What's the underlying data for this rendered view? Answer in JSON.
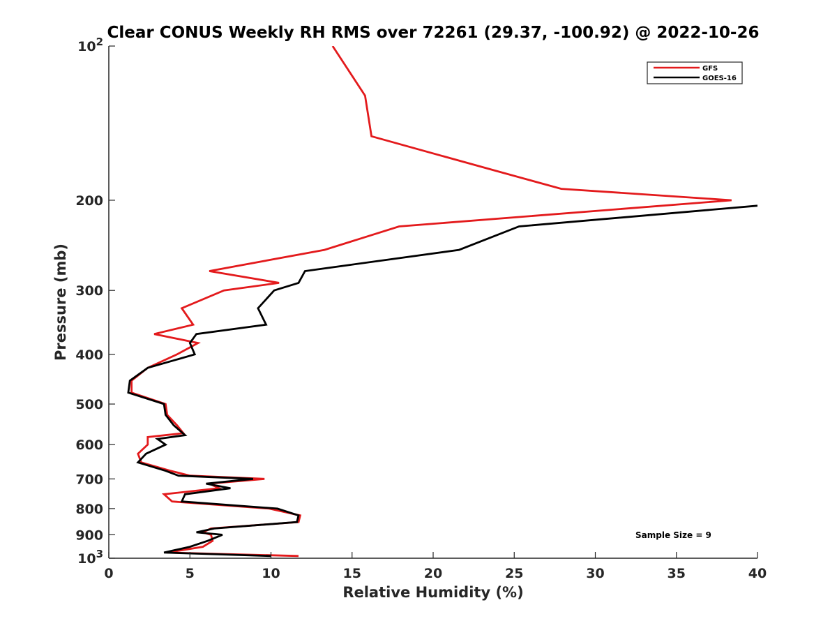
{
  "chart_data": {
    "type": "line",
    "title": "Clear CONUS Weekly RH RMS over 72261 (29.37, -100.92) @ 2022-10-26",
    "xlabel": "Relative Humidity (%)",
    "ylabel": "Pressure (mb)",
    "xlim": [
      0,
      40
    ],
    "ylim": [
      100,
      1000
    ],
    "y_scale": "log",
    "y_reversed": true,
    "x_ticks": [
      0,
      5,
      10,
      15,
      20,
      25,
      30,
      35,
      40
    ],
    "x_tick_labels": [
      "0",
      "5",
      "10",
      "15",
      "20",
      "25",
      "30",
      "35",
      "40"
    ],
    "y_ticks": [
      100,
      200,
      300,
      400,
      500,
      600,
      700,
      800,
      900,
      1000
    ],
    "y_tick_labels": [
      "10^2",
      "200",
      "300",
      "400",
      "500",
      "600",
      "700",
      "800",
      "900",
      "10^3"
    ],
    "y_label_base": "10",
    "y_label_exp_top": "2",
    "y_label_exp_bottom": "3",
    "grid": false,
    "legend_position": "top-right",
    "annotation": "Sample Size = 9",
    "series": [
      {
        "name": "GFS",
        "color": "#e31a1c",
        "points": [
          [
            13.8,
            100
          ],
          [
            15.8,
            125
          ],
          [
            16.2,
            150
          ],
          [
            23.8,
            175
          ],
          [
            27.9,
            190
          ],
          [
            38.4,
            200
          ],
          [
            17.9,
            225
          ],
          [
            13.3,
            250
          ],
          [
            6.2,
            275
          ],
          [
            10.5,
            290
          ],
          [
            7.1,
            300
          ],
          [
            4.5,
            325
          ],
          [
            5.2,
            350
          ],
          [
            2.8,
            365
          ],
          [
            5.5,
            380
          ],
          [
            4.2,
            400
          ],
          [
            2.4,
            425
          ],
          [
            1.4,
            450
          ],
          [
            1.4,
            475
          ],
          [
            3.5,
            500
          ],
          [
            3.6,
            525
          ],
          [
            4.2,
            550
          ],
          [
            4.6,
            570
          ],
          [
            2.4,
            580
          ],
          [
            2.4,
            600
          ],
          [
            1.8,
            625
          ],
          [
            2.0,
            650
          ],
          [
            3.8,
            675
          ],
          [
            5.0,
            690
          ],
          [
            9.6,
            700
          ],
          [
            6.2,
            715
          ],
          [
            6.8,
            730
          ],
          [
            3.4,
            750
          ],
          [
            3.9,
            775
          ],
          [
            9.9,
            800
          ],
          [
            11.8,
            825
          ],
          [
            11.7,
            850
          ],
          [
            6.3,
            875
          ],
          [
            5.8,
            890
          ],
          [
            6.3,
            900
          ],
          [
            6.4,
            925
          ],
          [
            5.8,
            950
          ],
          [
            3.6,
            975
          ],
          [
            11.7,
            990
          ]
        ]
      },
      {
        "name": "GOES-16",
        "color": "#000000",
        "points": [
          [
            40.0,
            205
          ],
          [
            25.3,
            225
          ],
          [
            21.6,
            250
          ],
          [
            12.1,
            275
          ],
          [
            11.7,
            290
          ],
          [
            10.2,
            300
          ],
          [
            9.2,
            325
          ],
          [
            9.7,
            350
          ],
          [
            5.4,
            365
          ],
          [
            5.0,
            380
          ],
          [
            5.3,
            400
          ],
          [
            2.4,
            425
          ],
          [
            1.3,
            450
          ],
          [
            1.2,
            475
          ],
          [
            3.4,
            500
          ],
          [
            3.5,
            525
          ],
          [
            4.0,
            550
          ],
          [
            4.7,
            575
          ],
          [
            3.0,
            585
          ],
          [
            3.5,
            600
          ],
          [
            2.3,
            625
          ],
          [
            1.8,
            650
          ],
          [
            3.5,
            675
          ],
          [
            4.3,
            690
          ],
          [
            8.9,
            700
          ],
          [
            6.0,
            715
          ],
          [
            7.5,
            730
          ],
          [
            4.7,
            750
          ],
          [
            4.5,
            775
          ],
          [
            10.4,
            800
          ],
          [
            11.7,
            825
          ],
          [
            11.6,
            850
          ],
          [
            6.5,
            875
          ],
          [
            5.4,
            890
          ],
          [
            7.0,
            900
          ],
          [
            6.1,
            925
          ],
          [
            5.0,
            950
          ],
          [
            3.4,
            975
          ],
          [
            10.0,
            990
          ]
        ]
      }
    ]
  }
}
